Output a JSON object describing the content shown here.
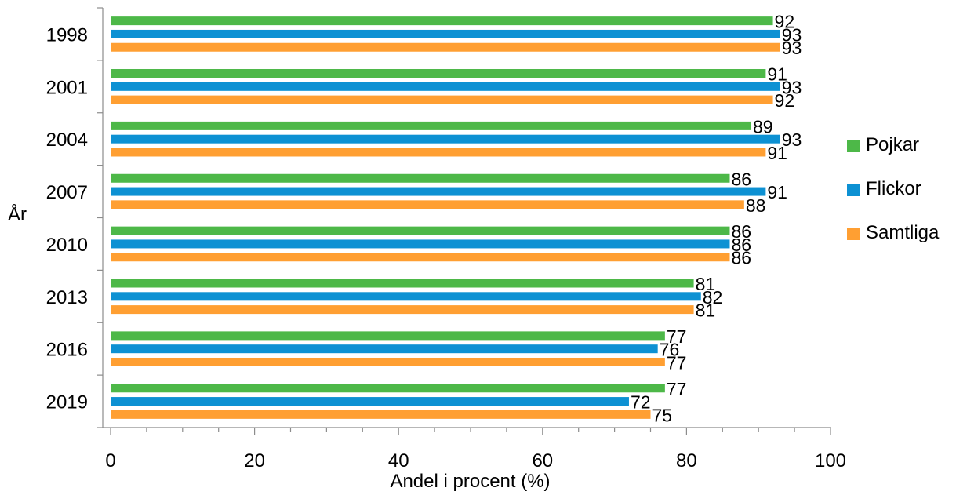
{
  "chart_data": {
    "type": "bar",
    "orientation": "horizontal",
    "categories": [
      "1998",
      "2001",
      "2004",
      "2007",
      "2010",
      "2013",
      "2016",
      "2019"
    ],
    "series": [
      {
        "name": "Pojkar",
        "color": "#4DB848",
        "values": [
          92,
          91,
          89,
          86,
          86,
          81,
          77,
          77
        ]
      },
      {
        "name": "Flickor",
        "color": "#0D91D3",
        "values": [
          93,
          93,
          93,
          91,
          86,
          82,
          76,
          72
        ]
      },
      {
        "name": "Samtliga",
        "color": "#FF9F32",
        "values": [
          93,
          92,
          91,
          88,
          86,
          81,
          77,
          75
        ]
      }
    ],
    "xlabel": "Andel i procent (%)",
    "ylabel": "År",
    "xlim": [
      0,
      100
    ],
    "x_ticks": [
      "0",
      "20",
      "40",
      "60",
      "80",
      "100"
    ],
    "grid": false,
    "legend_position": "right",
    "data_labels": true
  }
}
